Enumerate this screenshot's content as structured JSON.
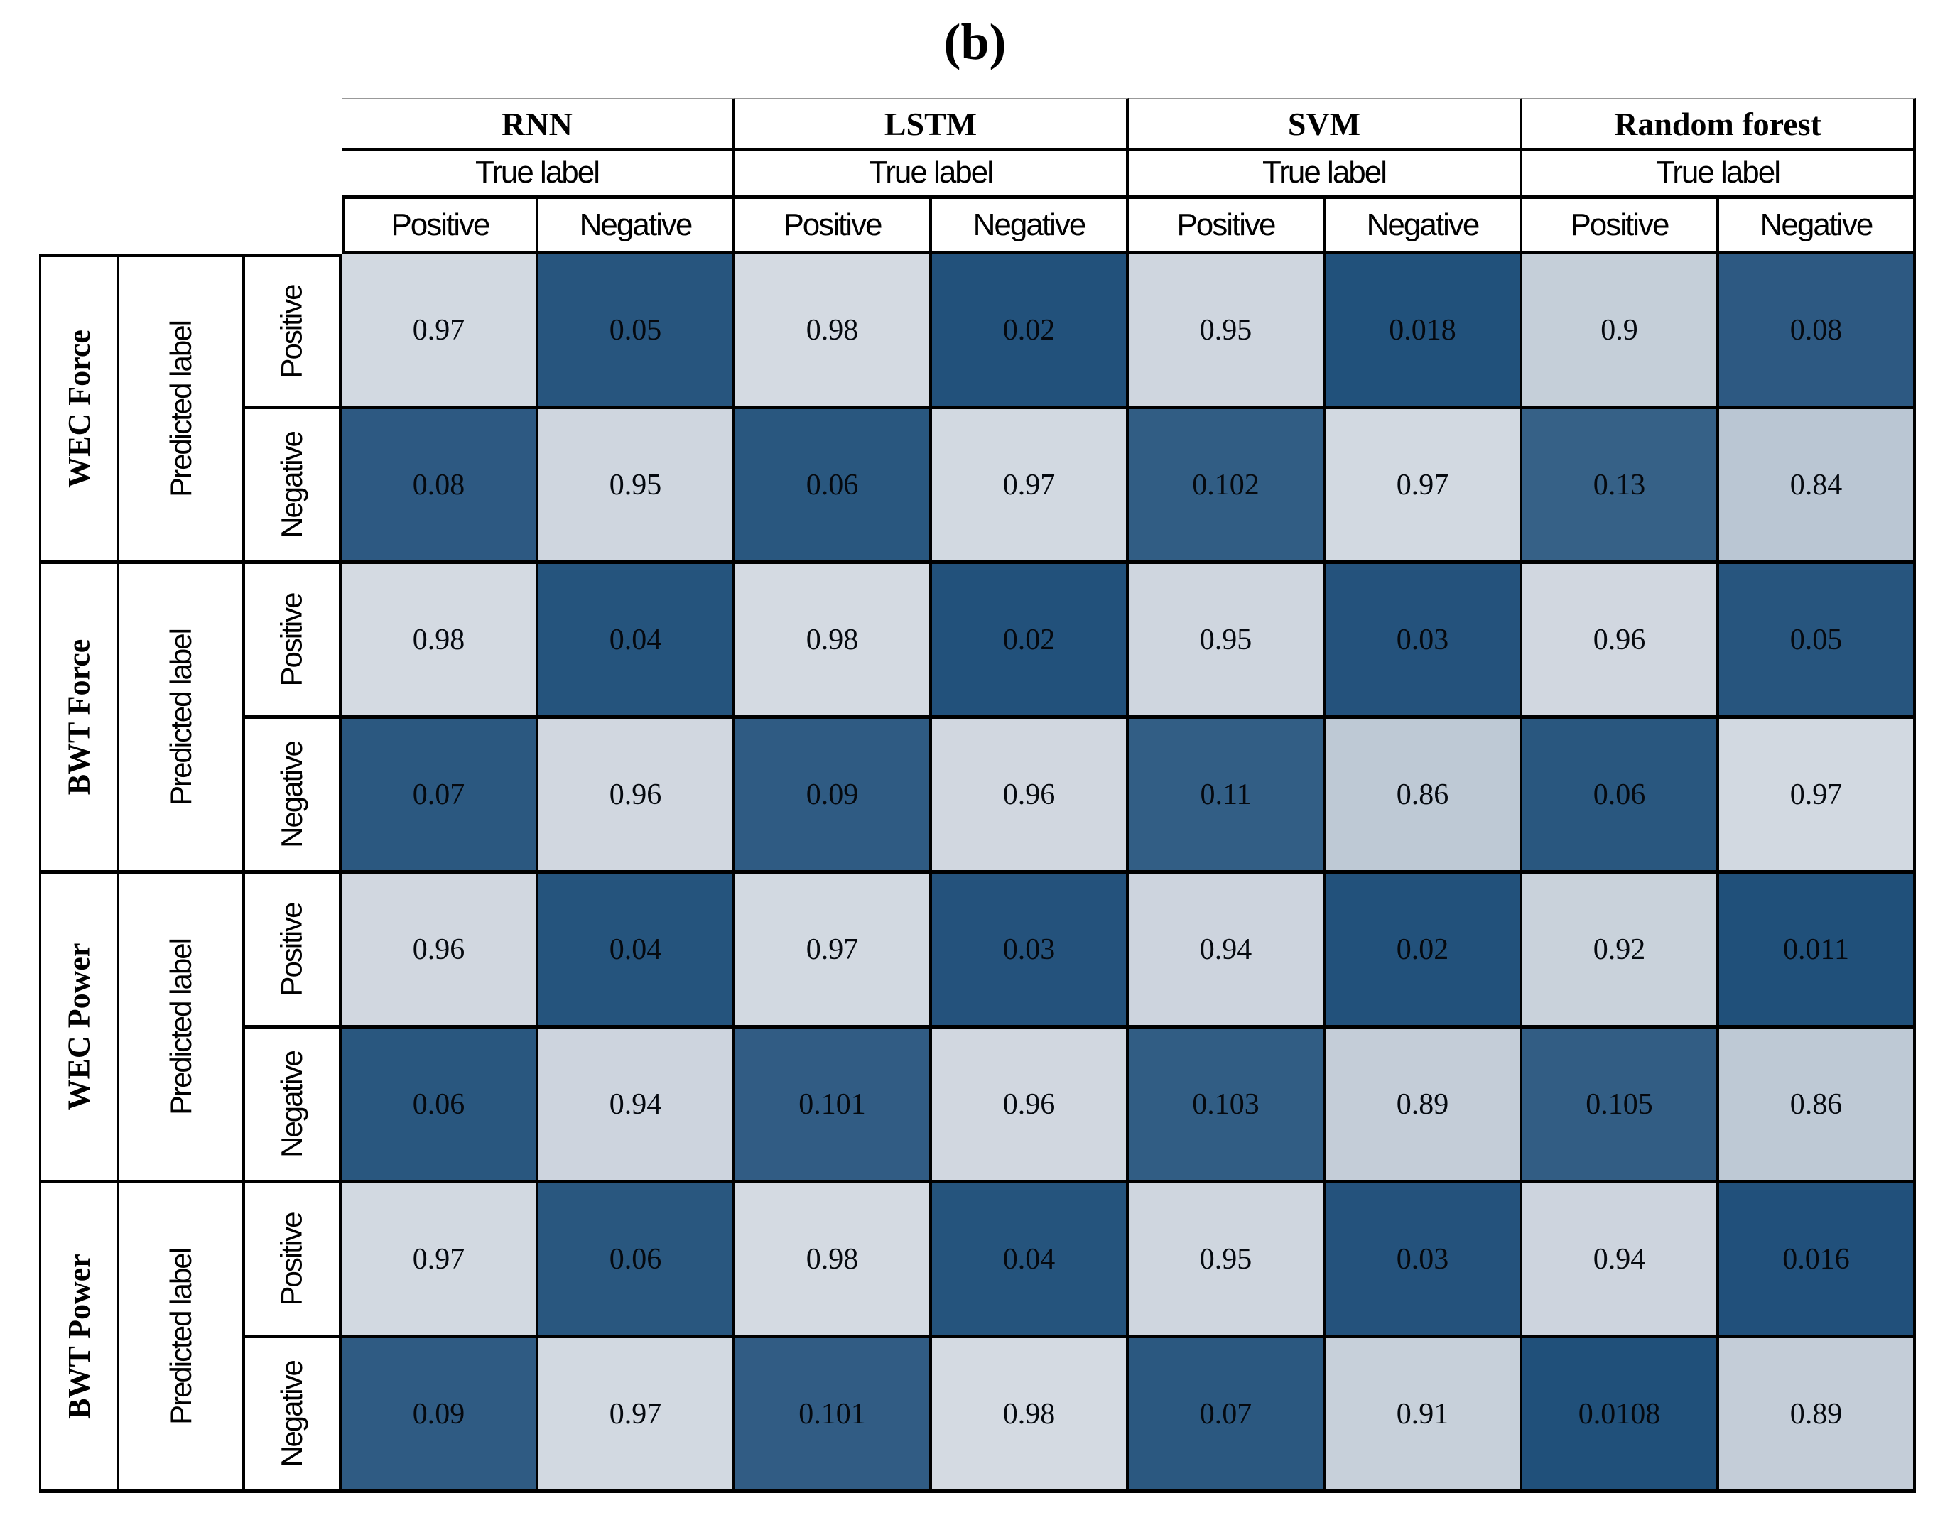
{
  "chart_data": {
    "type": "heatmap",
    "title": "(b)",
    "models": [
      "RNN",
      "LSTM",
      "SVM",
      "Random forest"
    ],
    "true_label_header": "True label",
    "predicted_label_header": "Predicted label",
    "class_labels": [
      "Positive",
      "Negative"
    ],
    "columns": [
      "RNN Positive",
      "RNN Negative",
      "LSTM Positive",
      "LSTM Negative",
      "SVM Positive",
      "SVM Negative",
      "Random forest Positive",
      "Random forest Negative"
    ],
    "row_groups": [
      {
        "name": "WEC Force",
        "rows": [
          {
            "label": "Positive",
            "values": [
              "0.97",
              "0.05",
              "0.98",
              "0.02",
              "0.95",
              "0.018",
              "0.9",
              "0.08"
            ]
          },
          {
            "label": "Negative",
            "values": [
              "0.08",
              "0.95",
              "0.06",
              "0.97",
              "0.102",
              "0.97",
              "0.13",
              "0.84"
            ]
          }
        ]
      },
      {
        "name": "BWT Force",
        "rows": [
          {
            "label": "Positive",
            "values": [
              "0.98",
              "0.04",
              "0.98",
              "0.02",
              "0.95",
              "0.03",
              "0.96",
              "0.05"
            ]
          },
          {
            "label": "Negative",
            "values": [
              "0.07",
              "0.96",
              "0.09",
              "0.96",
              "0.11",
              "0.86",
              "0.06",
              "0.97"
            ]
          }
        ]
      },
      {
        "name": "WEC Power",
        "rows": [
          {
            "label": "Positive",
            "values": [
              "0.96",
              "0.04",
              "0.97",
              "0.03",
              "0.94",
              "0.02",
              "0.92",
              "0.011"
            ]
          },
          {
            "label": "Negative",
            "values": [
              "0.06",
              "0.94",
              "0.101",
              "0.96",
              "0.103",
              "0.89",
              "0.105",
              "0.86"
            ]
          }
        ]
      },
      {
        "name": "BWT Power",
        "rows": [
          {
            "label": "Positive",
            "values": [
              "0.97",
              "0.06",
              "0.98",
              "0.04",
              "0.95",
              "0.03",
              "0.94",
              "0.016"
            ]
          },
          {
            "label": "Negative",
            "values": [
              "0.09",
              "0.97",
              "0.101",
              "0.98",
              "0.07",
              "0.91",
              "0.0108",
              "0.89"
            ]
          }
        ]
      }
    ],
    "color_scale": {
      "low_value_color": "#1e4e79",
      "high_value_color": "#d8dde4",
      "mapping": "cell background interpolated linearly by value: low values dark blue, high values light gray-blue"
    },
    "grid_color": "#000000",
    "legend_position": "none",
    "grid": true
  }
}
